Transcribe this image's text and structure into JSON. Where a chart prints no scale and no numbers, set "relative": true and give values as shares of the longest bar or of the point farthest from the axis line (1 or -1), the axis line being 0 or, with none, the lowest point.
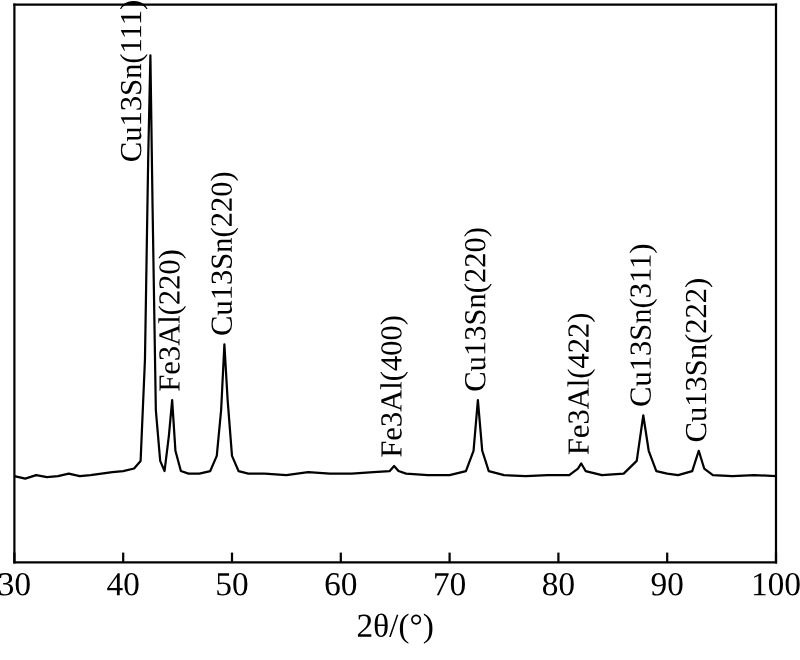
{
  "chart_data": {
    "type": "line",
    "relative": true,
    "xlabel": "2θ/(°)",
    "color": "#000000",
    "x": [
      30,
      31,
      32,
      33,
      34,
      35,
      36,
      37,
      38,
      39,
      40,
      41,
      41.6,
      42,
      42.3,
      42.5,
      42.7,
      43,
      43.4,
      43.8,
      44.2,
      44.5,
      44.8,
      45.3,
      46,
      47,
      48,
      48.6,
      49,
      49.3,
      49.6,
      50,
      50.6,
      51.5,
      53,
      55,
      57,
      59,
      61,
      63,
      64.5,
      64.9,
      65.3,
      66,
      68,
      70,
      71.5,
      72.2,
      72.6,
      73,
      73.6,
      75,
      77,
      79,
      81,
      81.8,
      82.1,
      82.5,
      84,
      86,
      87.2,
      87.8,
      88.3,
      89,
      90,
      91,
      92.3,
      92.9,
      93.4,
      94.2,
      96,
      98,
      100
    ],
    "values": [
      0.17,
      0.165,
      0.172,
      0.168,
      0.17,
      0.175,
      0.17,
      0.172,
      0.175,
      0.178,
      0.18,
      0.185,
      0.2,
      0.4,
      0.8,
      1.0,
      0.7,
      0.3,
      0.2,
      0.18,
      0.25,
      0.32,
      0.22,
      0.18,
      0.175,
      0.175,
      0.18,
      0.21,
      0.3,
      0.43,
      0.32,
      0.21,
      0.18,
      0.175,
      0.175,
      0.172,
      0.178,
      0.175,
      0.175,
      0.178,
      0.18,
      0.19,
      0.18,
      0.175,
      0.172,
      0.172,
      0.18,
      0.22,
      0.32,
      0.22,
      0.18,
      0.172,
      0.17,
      0.172,
      0.172,
      0.185,
      0.195,
      0.18,
      0.172,
      0.175,
      0.2,
      0.29,
      0.22,
      0.18,
      0.175,
      0.172,
      0.18,
      0.22,
      0.185,
      0.172,
      0.17,
      0.172,
      0.17
    ],
    "xlim": [
      30,
      100
    ],
    "xticks": [
      30,
      40,
      50,
      60,
      70,
      80,
      90,
      100
    ],
    "annotations": [
      {
        "text": "Cu13Sn(111)",
        "x": 42.5,
        "y": 1.0
      },
      {
        "text": "Fe3Al(220)",
        "x": 44.5,
        "y": 0.32
      },
      {
        "text": "Cu13Sn(220)",
        "x": 49.3,
        "y": 0.43
      },
      {
        "text": "Fe3Al(400)",
        "x": 64.9,
        "y": 0.19
      },
      {
        "text": "Cu13Sn(220)",
        "x": 72.6,
        "y": 0.32
      },
      {
        "text": "Fe3Al(422)",
        "x": 82.1,
        "y": 0.195
      },
      {
        "text": "Cu13Sn(311)",
        "x": 87.8,
        "y": 0.29
      },
      {
        "text": "Cu13Sn(222)",
        "x": 92.9,
        "y": 0.22
      }
    ]
  }
}
